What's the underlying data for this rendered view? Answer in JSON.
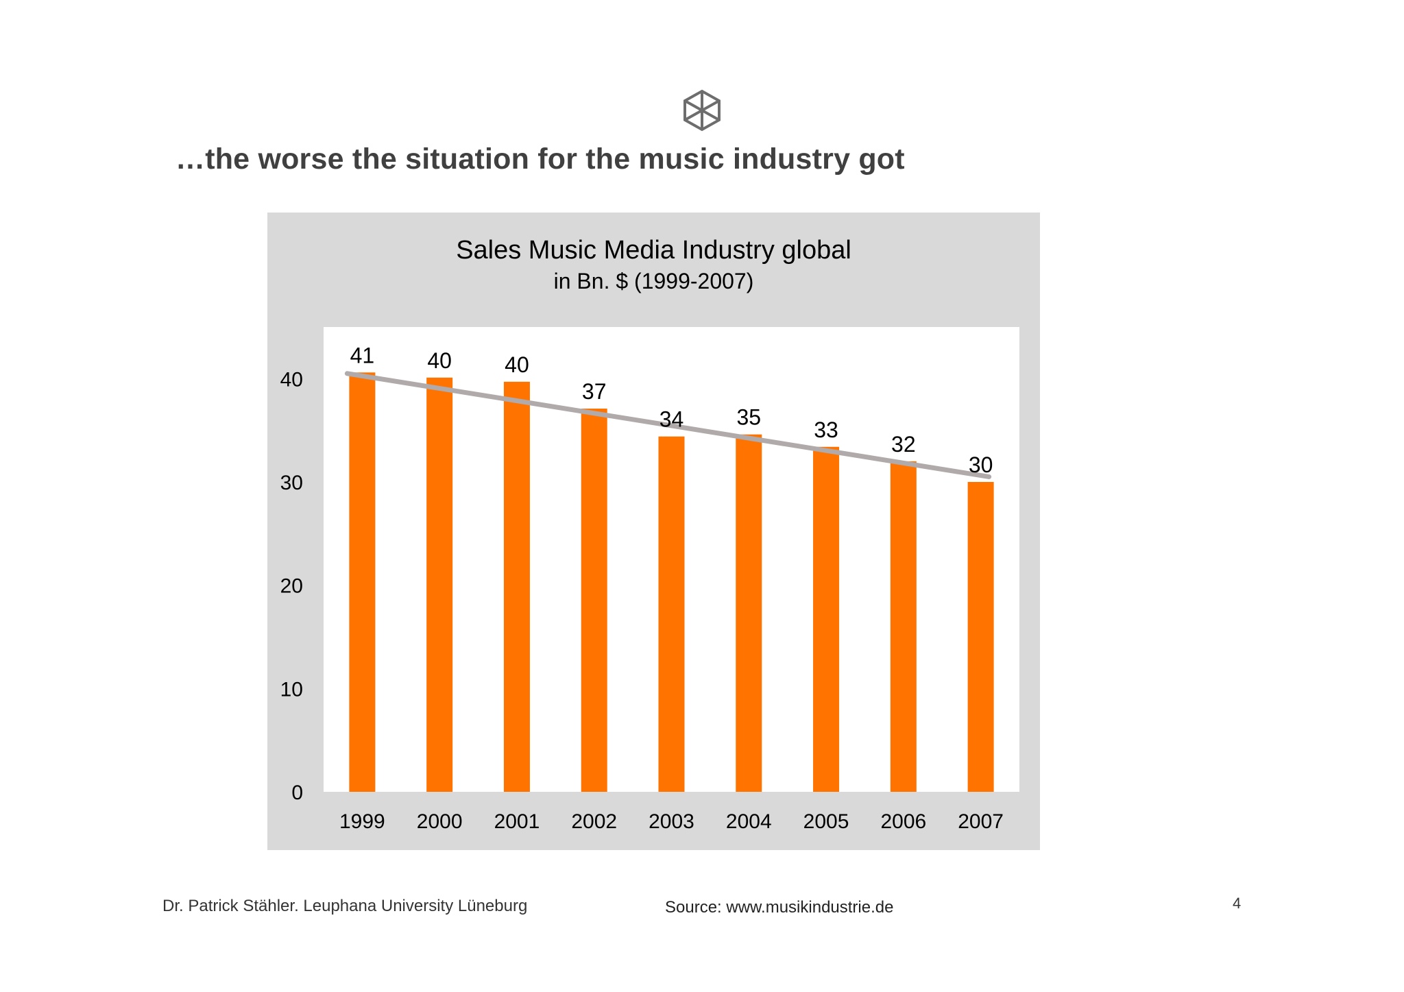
{
  "slide": {
    "title": "…the worse the situation for the music industry got",
    "logo_icon": "hexagon-cube-icon"
  },
  "chart_data": {
    "type": "bar",
    "title": "Sales Music Media Industry global",
    "subtitle": "in Bn. $ (1999-2007)",
    "categories": [
      "1999",
      "2000",
      "2001",
      "2002",
      "2003",
      "2004",
      "2005",
      "2006",
      "2007"
    ],
    "values": [
      40.6,
      40.1,
      39.7,
      37.1,
      34.4,
      34.6,
      33.4,
      32.0,
      30.0
    ],
    "data_labels": [
      "41",
      "40",
      "40",
      "37",
      "34",
      "35",
      "33",
      "32",
      "30"
    ],
    "trendline": {
      "start": 40.5,
      "end": 30.5
    },
    "yticks": [
      0,
      10,
      20,
      30,
      40
    ],
    "ylim": [
      0,
      45
    ],
    "xlabel": "",
    "ylabel": "",
    "colors": {
      "bar": "#ff7300",
      "trendline": "#b0aaaa",
      "plot_background": "#ffffff",
      "panel_background": "#d9d9d9"
    }
  },
  "footer": {
    "author": "Dr. Patrick Stähler. Leuphana University Lüneburg",
    "source": "Source: www.musikindustrie.de",
    "page_number": "4"
  }
}
